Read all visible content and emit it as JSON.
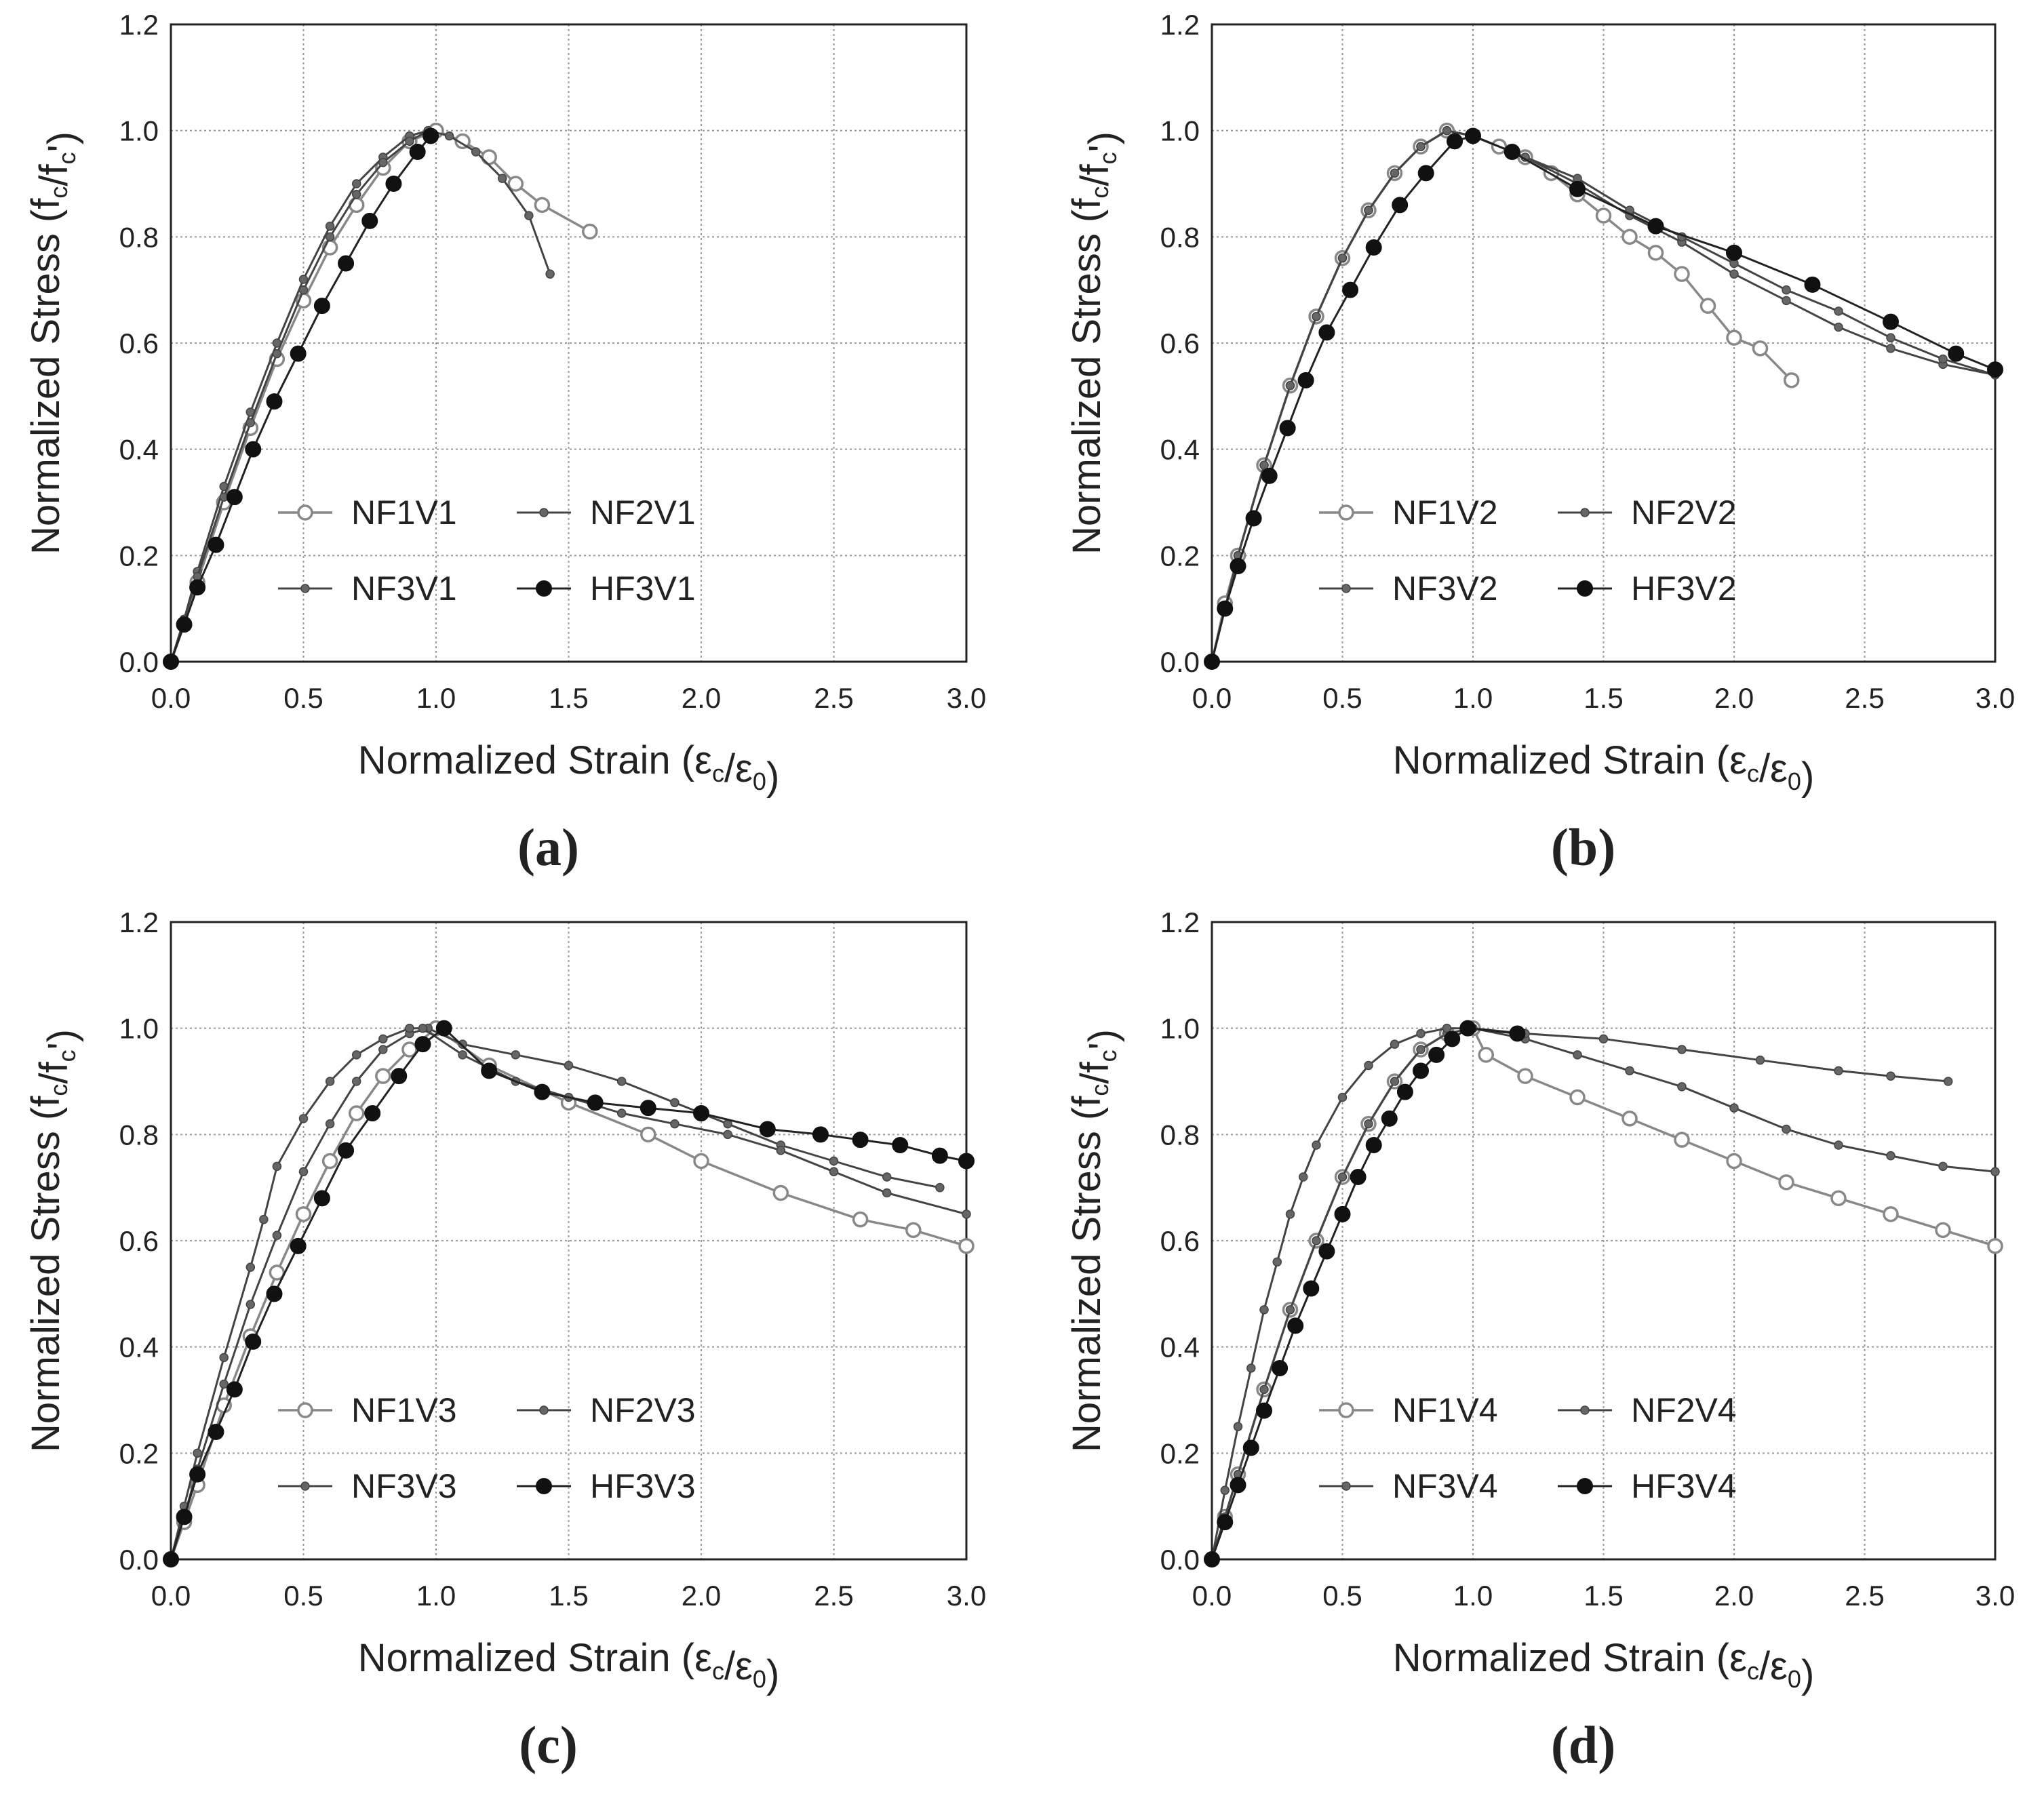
{
  "figure": {
    "xlabel_base": "Normalized Strain (ε",
    "xlabel_sub1": "c",
    "xlabel_mid": "/ε",
    "xlabel_sub2": "0",
    "xlabel_end": ")",
    "ylabel_base": "Normalized Stress (f",
    "ylabel_sub1": "c",
    "ylabel_mid": "/f",
    "ylabel_sub2": "c",
    "ylabel_end": "')"
  },
  "chart_data": [
    {
      "type": "line",
      "panel_label": "a",
      "xlim": [
        0,
        3
      ],
      "ylim": [
        0,
        1.2
      ],
      "xticks": [
        "0.0",
        "0.5",
        "1.0",
        "1.5",
        "2.0",
        "2.5",
        "3.0"
      ],
      "yticks": [
        "0.0",
        "0.2",
        "0.4",
        "0.6",
        "0.8",
        "1.0",
        "1.2"
      ],
      "grid": true,
      "legend_position": "lower-center",
      "series": [
        {
          "name": "NF1V1",
          "marker": "hollow",
          "x": [
            0,
            0.05,
            0.1,
            0.2,
            0.3,
            0.4,
            0.5,
            0.6,
            0.7,
            0.8,
            0.9,
            1.0,
            1.1,
            1.2,
            1.3,
            1.4,
            1.58
          ],
          "y": [
            0,
            0.07,
            0.15,
            0.3,
            0.44,
            0.57,
            0.68,
            0.78,
            0.86,
            0.93,
            0.98,
            1.0,
            0.98,
            0.95,
            0.9,
            0.86,
            0.81
          ]
        },
        {
          "name": "NF2V1",
          "marker": "small",
          "x": [
            0,
            0.05,
            0.1,
            0.2,
            0.3,
            0.4,
            0.5,
            0.6,
            0.7,
            0.8,
            0.9,
            0.97,
            1.05,
            1.15,
            1.25,
            1.35,
            1.43
          ],
          "y": [
            0,
            0.08,
            0.17,
            0.33,
            0.47,
            0.6,
            0.72,
            0.82,
            0.9,
            0.95,
            0.99,
            1.0,
            0.99,
            0.96,
            0.91,
            0.84,
            0.73
          ]
        },
        {
          "name": "NF3V1",
          "marker": "small",
          "x": [
            0,
            0.05,
            0.1,
            0.2,
            0.3,
            0.4,
            0.5,
            0.6,
            0.7,
            0.8,
            0.9,
            0.97
          ],
          "y": [
            0,
            0.08,
            0.16,
            0.31,
            0.45,
            0.58,
            0.7,
            0.8,
            0.88,
            0.94,
            0.98,
            1.0
          ]
        },
        {
          "name": "HF3V1",
          "marker": "filled",
          "x": [
            0,
            0.05,
            0.1,
            0.17,
            0.24,
            0.31,
            0.39,
            0.48,
            0.57,
            0.66,
            0.75,
            0.84,
            0.93,
            0.98
          ],
          "y": [
            0,
            0.07,
            0.14,
            0.22,
            0.31,
            0.4,
            0.49,
            0.58,
            0.67,
            0.75,
            0.83,
            0.9,
            0.96,
            0.99
          ]
        }
      ]
    },
    {
      "type": "line",
      "panel_label": "b",
      "xlim": [
        0,
        3
      ],
      "ylim": [
        0,
        1.2
      ],
      "xticks": [
        "0.0",
        "0.5",
        "1.0",
        "1.5",
        "2.0",
        "2.5",
        "3.0"
      ],
      "yticks": [
        "0.0",
        "0.2",
        "0.4",
        "0.6",
        "0.8",
        "1.0",
        "1.2"
      ],
      "grid": true,
      "legend_position": "lower-center",
      "series": [
        {
          "name": "NF1V2",
          "marker": "hollow",
          "x": [
            0,
            0.05,
            0.1,
            0.2,
            0.3,
            0.4,
            0.5,
            0.6,
            0.7,
            0.8,
            0.9,
            1.0,
            1.1,
            1.2,
            1.3,
            1.4,
            1.5,
            1.6,
            1.7,
            1.8,
            1.9,
            2.0,
            2.1,
            2.22
          ],
          "y": [
            0,
            0.11,
            0.2,
            0.37,
            0.52,
            0.65,
            0.76,
            0.85,
            0.92,
            0.97,
            1.0,
            0.99,
            0.97,
            0.95,
            0.92,
            0.88,
            0.84,
            0.8,
            0.77,
            0.73,
            0.67,
            0.61,
            0.59,
            0.53
          ]
        },
        {
          "name": "NF2V2",
          "marker": "small",
          "x": [
            0,
            0.05,
            0.1,
            0.2,
            0.3,
            0.4,
            0.5,
            0.6,
            0.7,
            0.8,
            0.9,
            1.0,
            1.2,
            1.4,
            1.6,
            1.8,
            2.0,
            2.2,
            2.4,
            2.6,
            2.8,
            3.0
          ],
          "y": [
            0,
            0.1,
            0.2,
            0.37,
            0.52,
            0.65,
            0.76,
            0.85,
            0.92,
            0.97,
            1.0,
            0.99,
            0.95,
            0.9,
            0.84,
            0.79,
            0.73,
            0.68,
            0.63,
            0.59,
            0.56,
            0.54
          ]
        },
        {
          "name": "NF3V2",
          "marker": "small",
          "x": [
            0,
            0.05,
            0.1,
            0.2,
            0.3,
            0.4,
            0.5,
            0.6,
            0.7,
            0.8,
            0.9,
            1.0,
            1.2,
            1.4,
            1.6,
            1.8,
            2.0,
            2.2,
            2.4,
            2.6,
            2.8,
            3.0
          ],
          "y": [
            0,
            0.1,
            0.2,
            0.37,
            0.52,
            0.65,
            0.76,
            0.85,
            0.92,
            0.97,
            1.0,
            0.99,
            0.95,
            0.91,
            0.85,
            0.8,
            0.75,
            0.7,
            0.66,
            0.61,
            0.57,
            0.54
          ]
        },
        {
          "name": "HF3V2",
          "marker": "filled",
          "x": [
            0,
            0.05,
            0.1,
            0.16,
            0.22,
            0.29,
            0.36,
            0.44,
            0.53,
            0.62,
            0.72,
            0.82,
            0.93,
            1.0,
            1.15,
            1.4,
            1.7,
            2.0,
            2.3,
            2.6,
            2.85,
            3.0
          ],
          "y": [
            0,
            0.1,
            0.18,
            0.27,
            0.35,
            0.44,
            0.53,
            0.62,
            0.7,
            0.78,
            0.86,
            0.92,
            0.98,
            0.99,
            0.96,
            0.89,
            0.82,
            0.77,
            0.71,
            0.64,
            0.58,
            0.55
          ]
        }
      ]
    },
    {
      "type": "line",
      "panel_label": "c",
      "xlim": [
        0,
        3
      ],
      "ylim": [
        0,
        1.2
      ],
      "xticks": [
        "0.0",
        "0.5",
        "1.0",
        "1.5",
        "2.0",
        "2.5",
        "3.0"
      ],
      "yticks": [
        "0.0",
        "0.2",
        "0.4",
        "0.6",
        "0.8",
        "1.0",
        "1.2"
      ],
      "grid": true,
      "legend_position": "lower-center",
      "series": [
        {
          "name": "NF1V3",
          "marker": "hollow",
          "x": [
            0,
            0.05,
            0.1,
            0.2,
            0.3,
            0.4,
            0.5,
            0.6,
            0.7,
            0.8,
            0.9,
            1.0,
            1.2,
            1.5,
            1.8,
            2.0,
            2.3,
            2.6,
            2.8,
            3.0
          ],
          "y": [
            0,
            0.07,
            0.14,
            0.29,
            0.42,
            0.54,
            0.65,
            0.75,
            0.84,
            0.91,
            0.96,
            1.0,
            0.93,
            0.86,
            0.8,
            0.75,
            0.69,
            0.64,
            0.62,
            0.59
          ]
        },
        {
          "name": "NF2V3",
          "marker": "small",
          "x": [
            0,
            0.05,
            0.1,
            0.2,
            0.3,
            0.4,
            0.5,
            0.6,
            0.7,
            0.8,
            0.9,
            0.97,
            1.1,
            1.3,
            1.5,
            1.7,
            1.9,
            2.1,
            2.3,
            2.5,
            2.7,
            2.9
          ],
          "y": [
            0,
            0.08,
            0.17,
            0.33,
            0.48,
            0.61,
            0.73,
            0.82,
            0.9,
            0.96,
            0.99,
            1.0,
            0.97,
            0.95,
            0.93,
            0.9,
            0.86,
            0.82,
            0.78,
            0.75,
            0.72,
            0.7
          ]
        },
        {
          "name": "NF3V3",
          "marker": "small",
          "x": [
            0,
            0.05,
            0.1,
            0.2,
            0.3,
            0.35,
            0.4,
            0.5,
            0.6,
            0.7,
            0.8,
            0.9,
            0.95,
            1.1,
            1.3,
            1.5,
            1.7,
            1.9,
            2.1,
            2.3,
            2.5,
            2.7,
            3.0
          ],
          "y": [
            0,
            0.1,
            0.2,
            0.38,
            0.55,
            0.64,
            0.74,
            0.83,
            0.9,
            0.95,
            0.98,
            1.0,
            1.0,
            0.95,
            0.9,
            0.87,
            0.84,
            0.82,
            0.8,
            0.77,
            0.73,
            0.69,
            0.65
          ]
        },
        {
          "name": "HF3V3",
          "marker": "filled",
          "x": [
            0,
            0.05,
            0.1,
            0.17,
            0.24,
            0.31,
            0.39,
            0.48,
            0.57,
            0.66,
            0.76,
            0.86,
            0.95,
            1.03,
            1.2,
            1.4,
            1.6,
            1.8,
            2.0,
            2.25,
            2.45,
            2.6,
            2.75,
            2.9,
            3.0
          ],
          "y": [
            0,
            0.08,
            0.16,
            0.24,
            0.32,
            0.41,
            0.5,
            0.59,
            0.68,
            0.77,
            0.84,
            0.91,
            0.97,
            1.0,
            0.92,
            0.88,
            0.86,
            0.85,
            0.84,
            0.81,
            0.8,
            0.79,
            0.78,
            0.76,
            0.75
          ]
        }
      ]
    },
    {
      "type": "line",
      "panel_label": "d",
      "xlim": [
        0,
        3
      ],
      "ylim": [
        0,
        1.2
      ],
      "xticks": [
        "0.0",
        "0.5",
        "1.0",
        "1.5",
        "2.0",
        "2.5",
        "3.0"
      ],
      "yticks": [
        "0.0",
        "0.2",
        "0.4",
        "0.6",
        "0.8",
        "1.0",
        "1.2"
      ],
      "grid": true,
      "legend_position": "lower-center",
      "series": [
        {
          "name": "NF1V4",
          "marker": "hollow",
          "x": [
            0,
            0.05,
            0.1,
            0.2,
            0.3,
            0.4,
            0.5,
            0.6,
            0.7,
            0.8,
            0.9,
            1.0,
            1.05,
            1.2,
            1.4,
            1.6,
            1.8,
            2.0,
            2.2,
            2.4,
            2.6,
            2.8,
            3.0
          ],
          "y": [
            0,
            0.08,
            0.16,
            0.32,
            0.47,
            0.6,
            0.72,
            0.82,
            0.9,
            0.96,
            0.99,
            1.0,
            0.95,
            0.91,
            0.87,
            0.83,
            0.79,
            0.75,
            0.71,
            0.68,
            0.65,
            0.62,
            0.59
          ]
        },
        {
          "name": "NF2V4",
          "marker": "small",
          "x": [
            0,
            0.05,
            0.1,
            0.2,
            0.3,
            0.4,
            0.5,
            0.6,
            0.7,
            0.8,
            0.9,
            1.0,
            1.2,
            1.4,
            1.6,
            1.8,
            2.0,
            2.2,
            2.4,
            2.6,
            2.8,
            3.0
          ],
          "y": [
            0,
            0.08,
            0.16,
            0.32,
            0.47,
            0.6,
            0.72,
            0.82,
            0.9,
            0.96,
            0.99,
            1.0,
            0.98,
            0.95,
            0.92,
            0.89,
            0.85,
            0.81,
            0.78,
            0.76,
            0.74,
            0.73
          ]
        },
        {
          "name": "NF3V4",
          "marker": "small",
          "x": [
            0,
            0.05,
            0.1,
            0.15,
            0.2,
            0.25,
            0.3,
            0.35,
            0.4,
            0.5,
            0.6,
            0.7,
            0.8,
            0.9,
            1.0,
            1.2,
            1.5,
            1.8,
            2.1,
            2.4,
            2.6,
            2.82
          ],
          "y": [
            0,
            0.13,
            0.25,
            0.36,
            0.47,
            0.56,
            0.65,
            0.72,
            0.78,
            0.87,
            0.93,
            0.97,
            0.99,
            1.0,
            1.0,
            0.99,
            0.98,
            0.96,
            0.94,
            0.92,
            0.91,
            0.9
          ]
        },
        {
          "name": "HF3V4",
          "marker": "filled",
          "x": [
            0,
            0.05,
            0.1,
            0.15,
            0.2,
            0.26,
            0.32,
            0.38,
            0.44,
            0.5,
            0.56,
            0.62,
            0.68,
            0.74,
            0.8,
            0.86,
            0.92,
            0.98,
            1.17
          ],
          "y": [
            0,
            0.07,
            0.14,
            0.21,
            0.28,
            0.36,
            0.44,
            0.51,
            0.58,
            0.65,
            0.72,
            0.78,
            0.83,
            0.88,
            0.92,
            0.95,
            0.98,
            1.0,
            0.99
          ]
        }
      ]
    }
  ]
}
